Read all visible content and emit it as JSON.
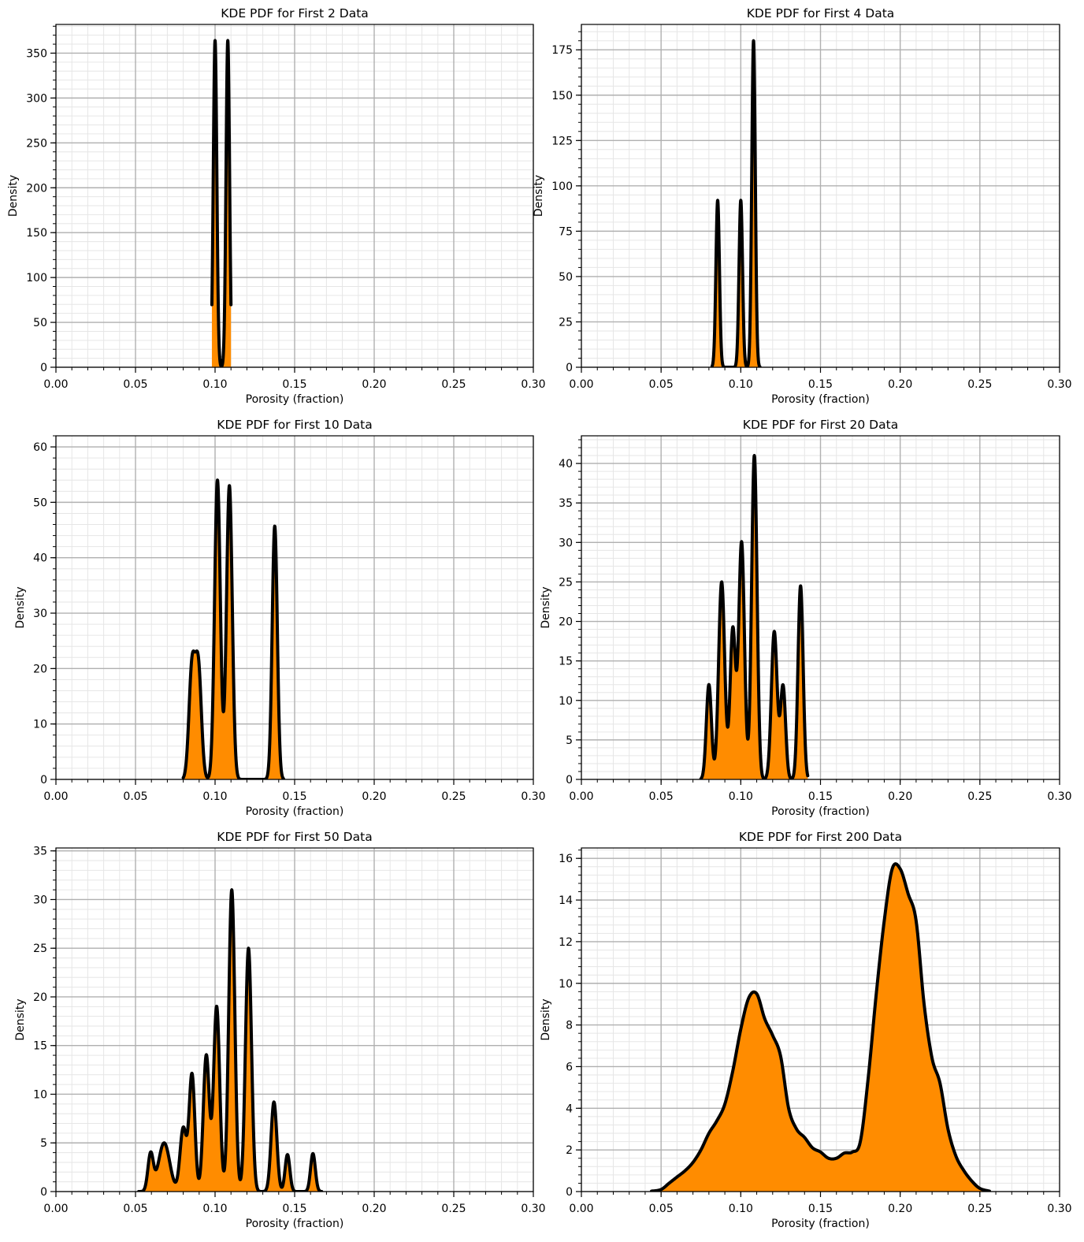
{
  "chart_data": [
    {
      "type": "area",
      "title": "KDE PDF for First 2 Data",
      "xlabel": "Porosity (fraction)",
      "ylabel": "Density",
      "xlim": [
        0,
        0.3
      ],
      "ylim": [
        0,
        382
      ],
      "xticks": [
        "0.00",
        "0.05",
        "0.10",
        "0.15",
        "0.20",
        "0.25",
        "0.30"
      ],
      "yticks": [
        "0",
        "50",
        "100",
        "150",
        "200",
        "250",
        "300",
        "350"
      ],
      "x_range": [
        0.098,
        0.11
      ],
      "peaks": [
        {
          "x": 0.1,
          "y": 364,
          "w": 0.0011
        },
        {
          "x": 0.108,
          "y": 364,
          "w": 0.0011
        }
      ],
      "grid": true,
      "fill_color": "#ff8c00",
      "line_color": "#000000"
    },
    {
      "type": "area",
      "title": "KDE PDF for First 4 Data",
      "xlabel": "Porosity (fraction)",
      "ylabel": "Density",
      "xlim": [
        0,
        0.3
      ],
      "ylim": [
        0,
        189
      ],
      "xticks": [
        "0.00",
        "0.05",
        "0.10",
        "0.15",
        "0.20",
        "0.25",
        "0.30"
      ],
      "yticks": [
        "0",
        "25",
        "50",
        "75",
        "100",
        "125",
        "150",
        "175"
      ],
      "x_range": [
        0.082,
        0.112
      ],
      "peaks": [
        {
          "x": 0.0855,
          "y": 92,
          "w": 0.0011
        },
        {
          "x": 0.1,
          "y": 92,
          "w": 0.0011
        },
        {
          "x": 0.108,
          "y": 180,
          "w": 0.0011
        }
      ],
      "grid": true,
      "fill_color": "#ff8c00",
      "line_color": "#000000"
    },
    {
      "type": "area",
      "title": "KDE PDF for First 10 Data",
      "xlabel": "Porosity (fraction)",
      "ylabel": "Density",
      "xlim": [
        0,
        0.3
      ],
      "ylim": [
        0,
        62
      ],
      "xticks": [
        "0.00",
        "0.05",
        "0.10",
        "0.15",
        "0.20",
        "0.25",
        "0.30"
      ],
      "yticks": [
        "0",
        "10",
        "20",
        "30",
        "40",
        "50",
        "60"
      ],
      "x_range": [
        0.08,
        0.143
      ],
      "peaks": [
        {
          "x": 0.0855,
          "y": 20,
          "w": 0.0019
        },
        {
          "x": 0.0895,
          "y": 20,
          "w": 0.0019
        },
        {
          "x": 0.1015,
          "y": 54,
          "w": 0.0018
        },
        {
          "x": 0.109,
          "y": 53,
          "w": 0.0018
        },
        {
          "x": 0.1375,
          "y": 45.7,
          "w": 0.0016
        }
      ],
      "grid": true,
      "fill_color": "#ff8c00",
      "line_color": "#000000"
    },
    {
      "type": "area",
      "title": "KDE PDF for First 20 Data",
      "xlabel": "Porosity (fraction)",
      "ylabel": "Density",
      "xlim": [
        0,
        0.3
      ],
      "ylim": [
        0,
        43.5
      ],
      "xticks": [
        "0.00",
        "0.05",
        "0.10",
        "0.15",
        "0.20",
        "0.25",
        "0.30"
      ],
      "yticks": [
        "0",
        "5",
        "10",
        "15",
        "20",
        "25",
        "30",
        "35",
        "40"
      ],
      "x_range": [
        0.075,
        0.142
      ],
      "peaks": [
        {
          "x": 0.08,
          "y": 12,
          "w": 0.0016
        },
        {
          "x": 0.088,
          "y": 25,
          "w": 0.0019
        },
        {
          "x": 0.095,
          "y": 19,
          "w": 0.0017
        },
        {
          "x": 0.1005,
          "y": 30,
          "w": 0.0018
        },
        {
          "x": 0.1085,
          "y": 41,
          "w": 0.0017
        },
        {
          "x": 0.121,
          "y": 18.7,
          "w": 0.0018
        },
        {
          "x": 0.1265,
          "y": 11.8,
          "w": 0.0016
        },
        {
          "x": 0.1375,
          "y": 24.5,
          "w": 0.0016
        }
      ],
      "grid": true,
      "fill_color": "#ff8c00",
      "line_color": "#000000"
    },
    {
      "type": "area",
      "title": "KDE PDF for First 50 Data",
      "xlabel": "Porosity (fraction)",
      "ylabel": "Density",
      "xlim": [
        0,
        0.3
      ],
      "ylim": [
        0,
        35.3
      ],
      "xticks": [
        "0.00",
        "0.05",
        "0.10",
        "0.15",
        "0.20",
        "0.25",
        "0.30"
      ],
      "yticks": [
        "0",
        "5",
        "10",
        "15",
        "20",
        "25",
        "30",
        "35"
      ],
      "x_range": [
        0.052,
        0.167
      ],
      "peaks": [
        {
          "x": 0.0595,
          "y": 3.8,
          "w": 0.0017
        },
        {
          "x": 0.068,
          "y": 5,
          "w": 0.0035
        },
        {
          "x": 0.08,
          "y": 6.5,
          "w": 0.002
        },
        {
          "x": 0.0855,
          "y": 12,
          "w": 0.0018
        },
        {
          "x": 0.0945,
          "y": 14,
          "w": 0.0019
        },
        {
          "x": 0.101,
          "y": 19,
          "w": 0.0019
        },
        {
          "x": 0.1105,
          "y": 31,
          "w": 0.0019
        },
        {
          "x": 0.121,
          "y": 25,
          "w": 0.0019
        },
        {
          "x": 0.137,
          "y": 9.2,
          "w": 0.0018
        },
        {
          "x": 0.1455,
          "y": 3.8,
          "w": 0.0015
        },
        {
          "x": 0.1615,
          "y": 3.9,
          "w": 0.0015
        }
      ],
      "grid": true,
      "fill_color": "#ff8c00",
      "line_color": "#000000"
    },
    {
      "type": "area",
      "title": "KDE PDF for First 200 Data",
      "xlabel": "Porosity (fraction)",
      "ylabel": "Density",
      "xlim": [
        0,
        0.3
      ],
      "ylim": [
        0,
        16.5
      ],
      "xticks": [
        "0.00",
        "0.05",
        "0.10",
        "0.15",
        "0.20",
        "0.25",
        "0.30"
      ],
      "yticks": [
        "0",
        "2",
        "4",
        "6",
        "8",
        "10",
        "12",
        "14",
        "16"
      ],
      "x": [
        0.044,
        0.05,
        0.055,
        0.06,
        0.065,
        0.07,
        0.075,
        0.08,
        0.085,
        0.09,
        0.095,
        0.1,
        0.105,
        0.11,
        0.115,
        0.12,
        0.125,
        0.13,
        0.135,
        0.14,
        0.145,
        0.15,
        0.155,
        0.16,
        0.165,
        0.17,
        0.175,
        0.18,
        0.185,
        0.19,
        0.195,
        0.2,
        0.205,
        0.21,
        0.215,
        0.22,
        0.225,
        0.23,
        0.235,
        0.24,
        0.245,
        0.25,
        0.256
      ],
      "y": [
        0.02,
        0.1,
        0.4,
        0.7,
        1.0,
        1.4,
        2.0,
        2.8,
        3.4,
        4.2,
        5.8,
        7.8,
        9.3,
        9.5,
        8.3,
        7.5,
        6.5,
        4.0,
        3.0,
        2.6,
        2.1,
        1.9,
        1.6,
        1.6,
        1.85,
        1.9,
        2.4,
        5.5,
        9.5,
        13.0,
        15.5,
        15.5,
        14.3,
        13.0,
        9.0,
        6.4,
        5.2,
        3.0,
        1.7,
        1.0,
        0.5,
        0.15,
        0.02
      ],
      "grid": true,
      "fill_color": "#ff8c00",
      "line_color": "#000000"
    }
  ]
}
